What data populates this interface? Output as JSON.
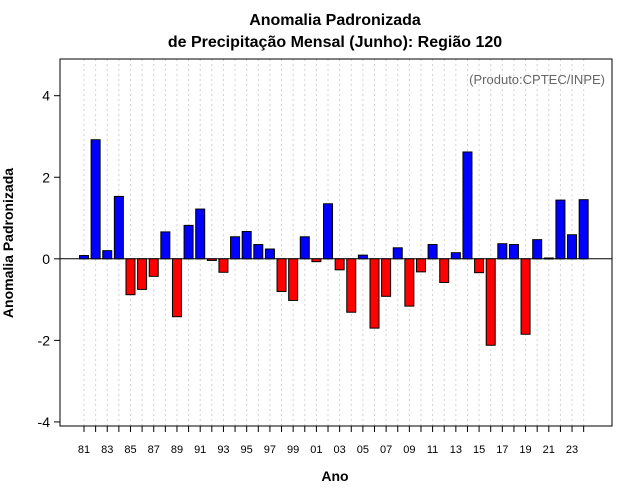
{
  "chart_data": {
    "type": "bar",
    "title": "Anomalia Padronizada",
    "subtitle": "de Precipitação Mensal (Junho): Região 120",
    "xlabel": "Ano",
    "ylabel": "Anomalia Padronizada",
    "credit": "(Produto:CPTEC/INPE)",
    "ylim": [
      -4.1,
      4.9
    ],
    "yticks": [
      -4,
      -2,
      0,
      2,
      4
    ],
    "ytick_labels": [
      "-4",
      "-2",
      "0",
      "2",
      "4"
    ],
    "grid": "vertical dotted",
    "categories": [
      "81",
      "82",
      "83",
      "84",
      "85",
      "86",
      "87",
      "88",
      "89",
      "90",
      "91",
      "92",
      "93",
      "94",
      "95",
      "96",
      "97",
      "98",
      "99",
      "00",
      "01",
      "02",
      "03",
      "04",
      "05",
      "06",
      "07",
      "08",
      "09",
      "10",
      "11",
      "12",
      "13",
      "14",
      "15",
      "16",
      "17",
      "18",
      "19",
      "20",
      "21",
      "22",
      "23",
      "24"
    ],
    "xtick_labels": [
      "81",
      "83",
      "85",
      "87",
      "89",
      "91",
      "93",
      "95",
      "97",
      "99",
      "01",
      "03",
      "05",
      "07",
      "09",
      "11",
      "13",
      "15",
      "17",
      "19",
      "21",
      "23"
    ],
    "values": [
      0.08,
      2.92,
      0.2,
      1.53,
      -0.88,
      -0.75,
      -0.43,
      0.66,
      -1.42,
      0.82,
      1.22,
      -0.04,
      -0.33,
      0.54,
      0.67,
      0.35,
      0.24,
      -0.8,
      -1.02,
      0.54,
      -0.07,
      1.35,
      -0.27,
      -1.31,
      0.09,
      -1.7,
      -0.92,
      0.27,
      -1.16,
      -0.32,
      0.35,
      -0.58,
      0.15,
      2.62,
      -0.34,
      -2.12,
      0.37,
      0.35,
      -1.85,
      0.47,
      0.02,
      1.44,
      0.59,
      1.45
    ],
    "colors": {
      "positive": "#0000ff",
      "negative": "#ff0000",
      "outline": "#000000",
      "grid": "#d3d3d3"
    }
  }
}
